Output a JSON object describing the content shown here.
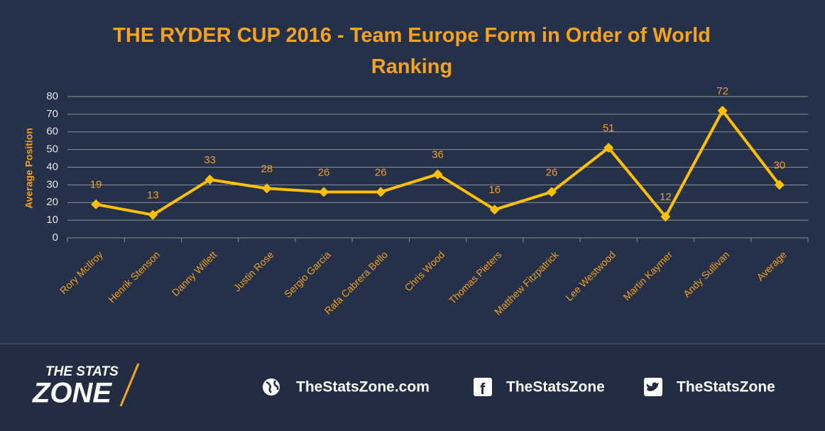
{
  "chart_data": {
    "type": "line",
    "title": "THE RYDER CUP 2016 - Team Europe Form in Order of World Ranking",
    "y_label": "Average Position",
    "categories": [
      "Rory McIlroy",
      "Henrik Stenson",
      "Danny Willett",
      "Justin Rose",
      "Sergio Garcia",
      "Rafa Cabrera Bello",
      "Chris Wood",
      "Thomas Pieters",
      "Matthew Fitzpatrick",
      "Lee Westwood",
      "Martin Kaymer",
      "Andy Sullivan",
      "Average"
    ],
    "values": [
      19,
      13,
      33,
      28,
      26,
      26,
      36,
      16,
      26,
      51,
      12,
      72,
      30
    ],
    "color": "#ffc000",
    "ylim": [
      0,
      80
    ],
    "yticks": [
      0,
      10,
      20,
      30,
      40,
      50,
      60,
      70,
      80
    ],
    "grid": true
  },
  "footer": {
    "logo_top": "THE STATS",
    "logo_bottom": "ZONE",
    "website": "TheStatsZone.com",
    "facebook": "TheStatsZone",
    "twitter": "TheStatsZone"
  }
}
